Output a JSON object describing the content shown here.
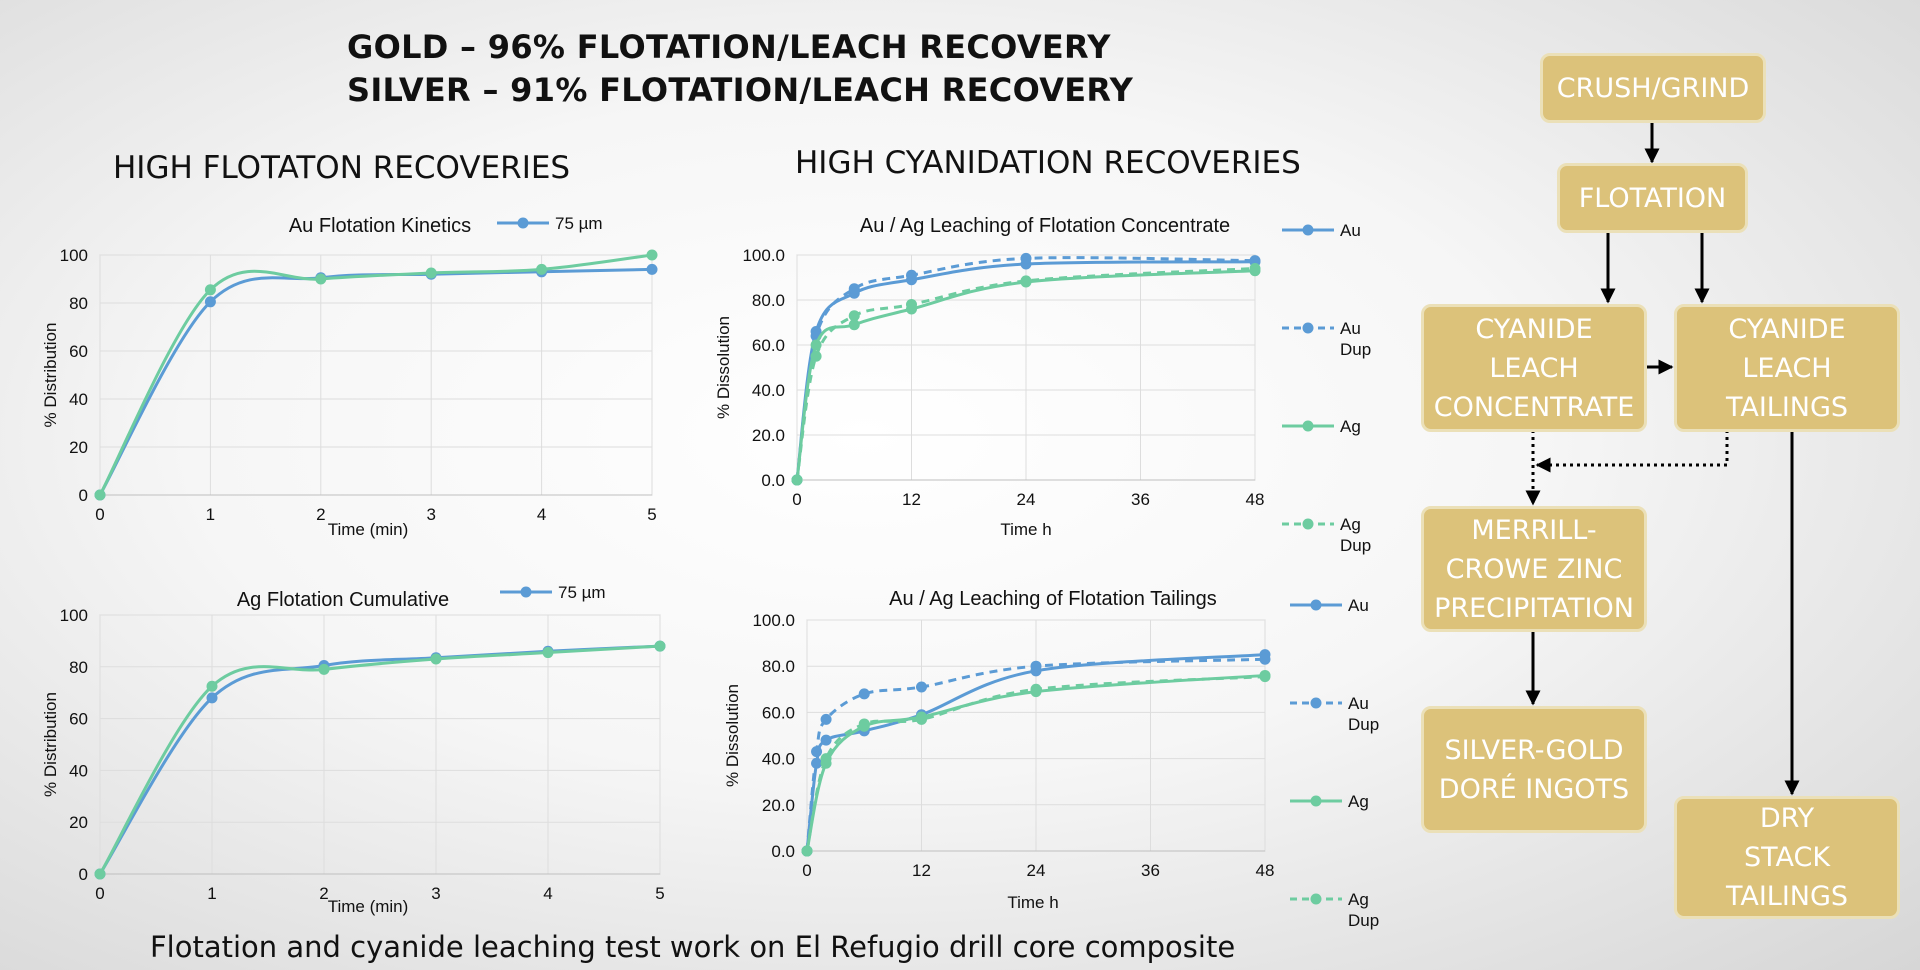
{
  "headline": {
    "line1": "GOLD – 96% FLOTATION/LEACH RECOVERY",
    "line2": "SILVER – 91% FLOTATION/LEACH RECOVERY"
  },
  "sections": {
    "flotation": "HIGH FLOTATON RECOVERIES",
    "cyanidation": "HIGH CYANIDATION RECOVERIES"
  },
  "footer": "Flotation and cyanide leaching test work on El Refugio drill core composite",
  "colors": {
    "blue": "#5b9bd5",
    "green": "#6dcca0"
  },
  "chart_data": [
    {
      "id": "au-flotation",
      "type": "line",
      "title": "Au Flotation Kinetics",
      "xlabel": "Time (min)",
      "ylabel": "% Distribution",
      "xlim": [
        0,
        5
      ],
      "ylim": [
        0,
        100
      ],
      "xticks": [
        0,
        1,
        2,
        3,
        4,
        5
      ],
      "yticks": [
        0,
        20,
        40,
        60,
        80,
        100
      ],
      "ytick_labels": [
        "0",
        "20",
        "40",
        "60",
        "80",
        "100"
      ],
      "legend": "top",
      "series": [
        {
          "name": "75 µm",
          "color": "#5b9bd5",
          "dashed": false,
          "x": [
            0,
            1,
            2,
            3,
            4,
            5
          ],
          "y": [
            0,
            80.5,
            90.5,
            92,
            93,
            94
          ]
        },
        {
          "color": "#6dcca0",
          "dashed": false,
          "x": [
            0,
            1,
            2,
            3,
            4,
            5
          ],
          "y": [
            0,
            85.5,
            90,
            92.5,
            94,
            100
          ]
        }
      ]
    },
    {
      "id": "ag-flotation",
      "type": "line",
      "title": "Ag Flotation Cumulative",
      "xlabel": "Time (min)",
      "ylabel": "% Distribution",
      "xlim": [
        0,
        5
      ],
      "ylim": [
        0,
        100
      ],
      "xticks": [
        0,
        1,
        2,
        3,
        4,
        5
      ],
      "yticks": [
        0,
        20,
        40,
        60,
        80,
        100
      ],
      "ytick_labels": [
        "0",
        "20",
        "40",
        "60",
        "80",
        "100"
      ],
      "legend": "top",
      "series": [
        {
          "name": "75 µm",
          "color": "#5b9bd5",
          "dashed": false,
          "x": [
            0,
            1,
            2,
            3,
            4,
            5
          ],
          "y": [
            0,
            68,
            80.5,
            83.5,
            86,
            88
          ]
        },
        {
          "color": "#6dcca0",
          "dashed": false,
          "x": [
            0,
            1,
            2,
            3,
            4,
            5
          ],
          "y": [
            0,
            72.5,
            79,
            83,
            85.5,
            88
          ]
        }
      ]
    },
    {
      "id": "leach-concentrate",
      "type": "line",
      "title": "Au / Ag Leaching of Flotation Concentrate",
      "xlabel": "Time h",
      "ylabel": "% Dissolution",
      "xlim": [
        0,
        48
      ],
      "ylim": [
        0,
        100
      ],
      "xticks": [
        0,
        12,
        24,
        36,
        48
      ],
      "yticks": [
        0,
        20,
        40,
        60,
        80,
        100
      ],
      "ytick_labels": [
        "0.0",
        "20.0",
        "40.0",
        "60.0",
        "80.0",
        "100.0"
      ],
      "legend": "right",
      "series": [
        {
          "name": "Au",
          "color": "#5b9bd5",
          "dashed": false,
          "x": [
            0,
            2,
            6,
            12,
            24,
            48
          ],
          "y": [
            0,
            66,
            83,
            89,
            96,
            97
          ]
        },
        {
          "name": "Au Dup",
          "color": "#5b9bd5",
          "dashed": true,
          "x": [
            0,
            2,
            6,
            12,
            24,
            48
          ],
          "y": [
            0,
            64,
            85,
            91,
            98.5,
            97.5
          ]
        },
        {
          "name": "Ag",
          "color": "#6dcca0",
          "dashed": false,
          "x": [
            0,
            2,
            6,
            12,
            24,
            48
          ],
          "y": [
            0,
            60,
            69,
            76,
            88,
            93
          ]
        },
        {
          "name": "Ag Dup",
          "color": "#6dcca0",
          "dashed": true,
          "x": [
            0,
            2,
            6,
            12,
            24,
            48
          ],
          "y": [
            0,
            55,
            73,
            78,
            88.5,
            94
          ]
        }
      ]
    },
    {
      "id": "leach-tailings",
      "type": "line",
      "title": "Au / Ag Leaching of Flotation Tailings",
      "xlabel": "Time h",
      "ylabel": "% Dissolution",
      "xlim": [
        0,
        48
      ],
      "ylim": [
        0,
        100
      ],
      "xticks": [
        0,
        12,
        24,
        36,
        48
      ],
      "yticks": [
        0,
        20,
        40,
        60,
        80,
        100
      ],
      "ytick_labels": [
        "0.0",
        "20.0",
        "40.0",
        "60.0",
        "80.0",
        "100.0"
      ],
      "legend": "right",
      "series": [
        {
          "name": "Au",
          "color": "#5b9bd5",
          "dashed": false,
          "x": [
            0,
            1,
            2,
            6,
            12,
            24,
            48
          ],
          "y": [
            0,
            38,
            48,
            52,
            59,
            78,
            85
          ]
        },
        {
          "name": "Au Dup",
          "color": "#5b9bd5",
          "dashed": true,
          "x": [
            0,
            1,
            2,
            6,
            12,
            24,
            48
          ],
          "y": [
            0,
            43,
            57,
            68,
            71,
            80,
            83
          ]
        },
        {
          "name": "Ag",
          "color": "#6dcca0",
          "dashed": false,
          "x": [
            0,
            2,
            6,
            12,
            24,
            48
          ],
          "y": [
            0,
            38,
            54,
            58,
            69,
            76
          ]
        },
        {
          "name": "Ag Dup",
          "color": "#6dcca0",
          "dashed": true,
          "x": [
            0,
            2,
            6,
            12,
            24,
            48
          ],
          "y": [
            0,
            40,
            55,
            57,
            70,
            75.5
          ]
        }
      ]
    }
  ],
  "flowsheet": {
    "crush_grind": "CRUSH/GRIND",
    "flotation": "FLOTATION",
    "cyanide_leach_concentrate": "CYANIDE LEACH CONCENTRATE",
    "cyanide_leach_tailings": "CYANIDE LEACH TAILINGS",
    "merrill_crowe": "MERRILL-CROWE ZINC PRECIPITATION",
    "dore": "SILVER-GOLD DORÉ INGOTS",
    "dry_stack": "DRY STACK TAILINGS"
  }
}
